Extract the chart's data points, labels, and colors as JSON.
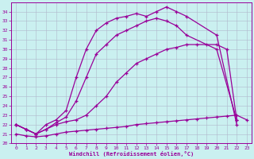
{
  "xlabel": "Windchill (Refroidissement éolien,°C)",
  "xlim": [
    -0.5,
    23.5
  ],
  "ylim": [
    20,
    35
  ],
  "xticks": [
    0,
    1,
    2,
    3,
    4,
    5,
    6,
    7,
    8,
    9,
    10,
    11,
    12,
    13,
    14,
    15,
    16,
    17,
    18,
    19,
    20,
    21,
    22,
    23
  ],
  "yticks": [
    20,
    21,
    22,
    23,
    24,
    25,
    26,
    27,
    28,
    29,
    30,
    31,
    32,
    33,
    34
  ],
  "bg_color": "#caf0f0",
  "line_color": "#990099",
  "grid_color": "#b0b8cc",
  "lines": [
    {
      "x": [
        0,
        1,
        2,
        3,
        4,
        5,
        6,
        7,
        8,
        9,
        10,
        11,
        12,
        13,
        14,
        15,
        16,
        17,
        18,
        19,
        20,
        21,
        22,
        23
      ],
      "y": [
        21.0,
        20.8,
        20.7,
        20.8,
        21.0,
        21.2,
        21.3,
        21.4,
        21.5,
        21.6,
        21.7,
        21.8,
        22.0,
        22.1,
        22.2,
        22.3,
        22.4,
        22.5,
        22.6,
        22.7,
        22.8,
        22.9,
        23.0,
        22.5
      ]
    },
    {
      "x": [
        0,
        1,
        2,
        3,
        4,
        5,
        6,
        7,
        8,
        9,
        10,
        11,
        12,
        13,
        14,
        15,
        16,
        17,
        18,
        19,
        20,
        21,
        22
      ],
      "y": [
        22.0,
        21.5,
        21.0,
        21.5,
        22.0,
        22.3,
        22.5,
        23.0,
        24.0,
        25.0,
        26.5,
        27.5,
        28.5,
        29.0,
        29.5,
        30.0,
        30.2,
        30.5,
        30.5,
        30.5,
        30.5,
        30.0,
        22.5
      ]
    },
    {
      "x": [
        0,
        1,
        2,
        3,
        4,
        5,
        6,
        7,
        8,
        9,
        10,
        11,
        12,
        13,
        14,
        15,
        16,
        17,
        20,
        22
      ],
      "y": [
        22.0,
        21.5,
        21.0,
        21.5,
        22.2,
        22.8,
        24.5,
        27.0,
        29.5,
        30.5,
        31.5,
        32.0,
        32.5,
        33.0,
        33.3,
        33.0,
        32.5,
        31.5,
        30.0,
        22.5
      ]
    },
    {
      "x": [
        0,
        1,
        2,
        3,
        4,
        5,
        6,
        7,
        8,
        9,
        10,
        11,
        12,
        13,
        14,
        15,
        16,
        17,
        20,
        22
      ],
      "y": [
        22.0,
        21.5,
        21.0,
        22.0,
        22.5,
        23.5,
        27.0,
        30.0,
        32.0,
        32.8,
        33.3,
        33.5,
        33.8,
        33.5,
        34.0,
        34.5,
        34.0,
        33.5,
        31.5,
        22.0
      ]
    }
  ]
}
